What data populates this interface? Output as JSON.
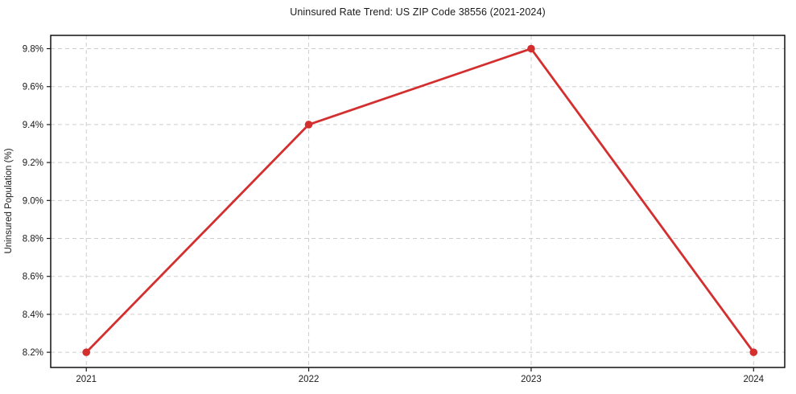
{
  "figure": {
    "background": "#ffffff",
    "title": "Uninsured Rate Trend: US ZIP Code 38556 (2021-2024)"
  },
  "chart_data": {
    "type": "line",
    "title": "Uninsured Rate Trend: US ZIP Code 38556 (2021-2024)",
    "xlabel": "",
    "ylabel": "Uninsured Population (%)",
    "x": [
      2021,
      2022,
      2023,
      2024
    ],
    "series": [
      {
        "name": "Uninsured rate",
        "values": [
          8.2,
          9.4,
          9.8,
          8.2
        ],
        "color": "#d32f2f",
        "marker": "circle",
        "line_width": 2.8,
        "marker_radius": 4.8
      }
    ],
    "xticks": [
      2021,
      2022,
      2023,
      2024
    ],
    "xtick_labels": [
      "2021",
      "2022",
      "2023",
      "2024"
    ],
    "yticks": [
      8.2,
      8.4,
      8.6,
      8.8,
      9.0,
      9.2,
      9.4,
      9.6,
      9.8
    ],
    "ytick_labels": [
      "8.2%",
      "8.4%",
      "8.6%",
      "8.8%",
      "9.0%",
      "9.2%",
      "9.4%",
      "9.6%",
      "9.8%"
    ],
    "xlim": [
      2020.84,
      2024.14
    ],
    "ylim": [
      8.12,
      9.87
    ],
    "grid": true,
    "grid_style": "dashed",
    "grid_color": "#cdcdcd",
    "axis_color": "#000000",
    "tick_color": "#1a1a1a",
    "text_color": "#1a1a1a",
    "legend": "none"
  }
}
